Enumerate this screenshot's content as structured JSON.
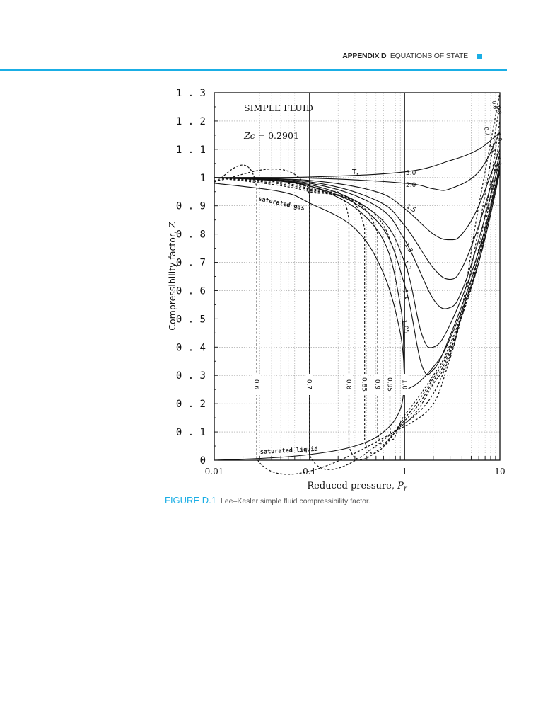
{
  "header": {
    "section": "APPENDIX D",
    "title": "EQUATIONS OF STATE",
    "accent_color": "#1aaee5"
  },
  "caption": {
    "label": "FIGURE D.1",
    "text": "Lee–Kesler simple fluid compressibility factor.",
    "label_color": "#1aaee5"
  },
  "chart_data": {
    "type": "line",
    "title": "SIMPLE FLUID",
    "annotation": "Zc = 0.2901",
    "xlabel": "Reduced pressure, Pr",
    "ylabel": "Compressibility factor, Z",
    "xscale": "log",
    "xlim": [
      0.01,
      10
    ],
    "ylim": [
      0,
      1.3
    ],
    "x_ticks": [
      "0.01",
      "0.1",
      "1",
      "10"
    ],
    "y_ticks": [
      "0",
      "0.1",
      "0.2",
      "0.3",
      "0.4",
      "0.5",
      "0.6",
      "0.7",
      "0.8",
      "0.9",
      "1",
      "1.1",
      "1.2",
      "1.3"
    ],
    "grid": true,
    "parameter_label": "Tr",
    "region_labels": [
      "saturated gas",
      "saturated liquid"
    ],
    "series": [
      {
        "name": "Tr=5.0",
        "style": "solid",
        "x": [
          0.01,
          0.1,
          1,
          3,
          6,
          10
        ],
        "y": [
          1.0,
          1.002,
          1.02,
          1.06,
          1.1,
          1.16
        ]
      },
      {
        "name": "Tr=2.0",
        "style": "solid",
        "x": [
          0.01,
          0.1,
          1,
          2,
          3,
          6,
          10
        ],
        "y": [
          1.0,
          0.998,
          0.98,
          0.96,
          0.96,
          1.02,
          1.16
        ]
      },
      {
        "name": "Tr=1.5",
        "style": "solid",
        "x": [
          0.01,
          0.1,
          0.5,
          1,
          2,
          3,
          4,
          6,
          10
        ],
        "y": [
          1.0,
          0.99,
          0.95,
          0.89,
          0.8,
          0.78,
          0.8,
          0.9,
          1.1
        ]
      },
      {
        "name": "Tr=1.3",
        "style": "solid",
        "x": [
          0.01,
          0.1,
          0.5,
          1,
          2,
          3,
          4,
          6,
          10
        ],
        "y": [
          1.0,
          0.985,
          0.92,
          0.83,
          0.68,
          0.64,
          0.68,
          0.83,
          1.08
        ]
      },
      {
        "name": "Tr=1.2",
        "style": "solid",
        "x": [
          0.01,
          0.1,
          0.5,
          1,
          2,
          3,
          4,
          6,
          10
        ],
        "y": [
          1.0,
          0.98,
          0.9,
          0.78,
          0.57,
          0.54,
          0.6,
          0.78,
          1.06
        ]
      },
      {
        "name": "Tr=1.1",
        "style": "solid",
        "x": [
          0.01,
          0.1,
          0.5,
          1,
          1.5,
          2,
          3,
          6,
          10
        ],
        "y": [
          1.0,
          0.975,
          0.87,
          0.7,
          0.45,
          0.4,
          0.48,
          0.74,
          1.04
        ]
      },
      {
        "name": "Tr=1.05",
        "style": "solid",
        "x": [
          0.01,
          0.1,
          0.5,
          1,
          1.5,
          2,
          3,
          6,
          10
        ],
        "y": [
          1.0,
          0.97,
          0.85,
          0.62,
          0.34,
          0.32,
          0.44,
          0.72,
          1.03
        ]
      },
      {
        "name": "Tr=1.0",
        "style": "solid",
        "x": [
          0.01,
          0.1,
          0.5,
          0.9,
          1,
          1.2,
          2,
          3,
          6,
          10
        ],
        "y": [
          1.0,
          0.97,
          0.82,
          0.55,
          0.29,
          0.26,
          0.33,
          0.43,
          0.7,
          1.02
        ]
      },
      {
        "name": "Tr=0.95",
        "style": "dashed",
        "x": [
          0.01,
          0.1,
          0.7,
          0.7,
          1,
          2,
          3,
          6,
          10
        ],
        "y": [
          1.0,
          0.965,
          0.78,
          0.12,
          0.16,
          0.3,
          0.41,
          0.7,
          1.05
        ]
      },
      {
        "name": "Tr=0.9",
        "style": "dashed",
        "x": [
          0.01,
          0.1,
          0.52,
          0.52,
          1,
          2,
          3,
          6,
          10
        ],
        "y": [
          1.0,
          0.96,
          0.8,
          0.1,
          0.15,
          0.29,
          0.4,
          0.7,
          1.09
        ]
      },
      {
        "name": "Tr=0.85",
        "style": "dashed",
        "x": [
          0.01,
          0.1,
          0.38,
          0.38,
          1,
          2,
          3,
          6,
          10
        ],
        "y": [
          1.0,
          0.955,
          0.82,
          0.07,
          0.14,
          0.28,
          0.39,
          0.72,
          1.14
        ]
      },
      {
        "name": "Tr=0.8",
        "style": "dashed",
        "x": [
          0.01,
          0.1,
          0.26,
          0.26,
          1,
          2,
          3,
          6,
          10
        ],
        "y": [
          1.0,
          0.95,
          0.85,
          0.05,
          0.13,
          0.27,
          0.38,
          0.75,
          1.2
        ]
      },
      {
        "name": "Tr=0.7",
        "style": "dashed",
        "x": [
          0.01,
          0.1,
          0.1,
          1,
          3,
          6,
          10
        ],
        "y": [
          0.99,
          0.94,
          0.02,
          0.13,
          0.37,
          0.82,
          1.26
        ]
      },
      {
        "name": "Tr=0.6",
        "style": "dashed",
        "x": [
          0.01,
          0.028,
          0.028,
          1,
          3,
          6,
          10
        ],
        "y": [
          0.985,
          0.96,
          0.005,
          0.12,
          0.36,
          0.9,
          1.3
        ]
      },
      {
        "name": "saturated gas",
        "style": "solid",
        "x": [
          0.01,
          0.05,
          0.1,
          0.3,
          0.6,
          0.9,
          1.0
        ],
        "y": [
          0.98,
          0.95,
          0.91,
          0.82,
          0.66,
          0.45,
          0.29
        ]
      },
      {
        "name": "saturated liquid",
        "style": "solid",
        "x": [
          0.01,
          0.03,
          0.1,
          0.3,
          0.6,
          0.9,
          1.0
        ],
        "y": [
          0.0,
          0.006,
          0.02,
          0.05,
          0.1,
          0.18,
          0.29
        ]
      }
    ],
    "curve_labels": {
      "tr_high": [
        "5.0",
        "2.0",
        "1.5",
        "1.3",
        "1.2",
        "1.1",
        "1.05"
      ],
      "tr_low": [
        "0.6",
        "0.7",
        "0.8",
        "0.85",
        "0.9",
        "0.95",
        "1.0"
      ],
      "tr_right_edge": [
        "0.6",
        "0.7",
        "0.8",
        "0.9",
        "1.0",
        "1.3",
        "1.1"
      ]
    }
  }
}
